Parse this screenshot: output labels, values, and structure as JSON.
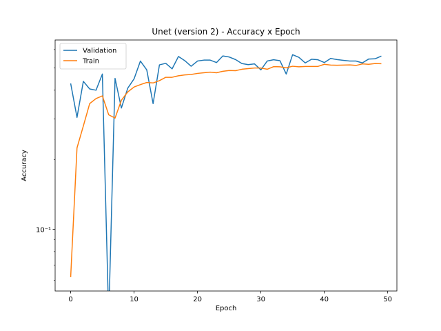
{
  "chart_data": {
    "type": "line",
    "title": "Unet (version 2) - Accuracy x Epoch",
    "xlabel": "Epoch",
    "ylabel": "Accuracy",
    "xlim": [
      -2.45,
      51.45
    ],
    "ylim": [
      0.054,
      0.66
    ],
    "yscale": "log",
    "x_ticks": [
      0,
      10,
      20,
      30,
      40,
      50
    ],
    "y_ticks": [
      {
        "value": 0.1,
        "label": "10⁻¹"
      }
    ],
    "legend_position": "upper left",
    "grid": false,
    "series": [
      {
        "name": "Validation",
        "color": "#1f77b4",
        "x": [
          0,
          1,
          2,
          3,
          4,
          5,
          6,
          7,
          8,
          9,
          10,
          11,
          12,
          13,
          14,
          15,
          16,
          17,
          18,
          19,
          20,
          21,
          22,
          23,
          24,
          25,
          26,
          27,
          28,
          29,
          30,
          31,
          32,
          33,
          34,
          35,
          36,
          37,
          38,
          39,
          40,
          41,
          42,
          43,
          44,
          45,
          46,
          47,
          48,
          49
        ],
        "y": [
          0.428,
          0.305,
          0.437,
          0.405,
          0.4,
          0.47,
          0.0,
          0.45,
          0.335,
          0.408,
          0.448,
          0.535,
          0.49,
          0.35,
          0.515,
          0.523,
          0.495,
          0.56,
          0.537,
          0.508,
          0.535,
          0.54,
          0.54,
          0.527,
          0.563,
          0.557,
          0.543,
          0.522,
          0.516,
          0.52,
          0.49,
          0.535,
          0.542,
          0.537,
          0.47,
          0.57,
          0.555,
          0.525,
          0.545,
          0.542,
          0.527,
          0.549,
          0.543,
          0.539,
          0.535,
          0.535,
          0.525,
          0.546,
          0.547,
          0.562
        ]
      },
      {
        "name": "Train",
        "color": "#ff7f0e",
        "x": [
          0,
          1,
          2,
          3,
          4,
          5,
          6,
          7,
          8,
          9,
          10,
          11,
          12,
          13,
          14,
          15,
          16,
          17,
          18,
          19,
          20,
          21,
          22,
          23,
          24,
          25,
          26,
          27,
          28,
          29,
          30,
          31,
          32,
          33,
          34,
          35,
          36,
          37,
          38,
          39,
          40,
          41,
          42,
          43,
          44,
          45,
          46,
          47,
          48,
          49
        ],
        "y": [
          0.062,
          0.225,
          0.28,
          0.35,
          0.368,
          0.378,
          0.313,
          0.303,
          0.362,
          0.393,
          0.413,
          0.423,
          0.432,
          0.43,
          0.44,
          0.455,
          0.455,
          0.462,
          0.466,
          0.468,
          0.473,
          0.476,
          0.479,
          0.476,
          0.483,
          0.487,
          0.486,
          0.493,
          0.496,
          0.499,
          0.499,
          0.493,
          0.506,
          0.505,
          0.5,
          0.508,
          0.505,
          0.507,
          0.507,
          0.507,
          0.518,
          0.514,
          0.513,
          0.514,
          0.515,
          0.512,
          0.52,
          0.518,
          0.522,
          0.521
        ]
      }
    ]
  }
}
